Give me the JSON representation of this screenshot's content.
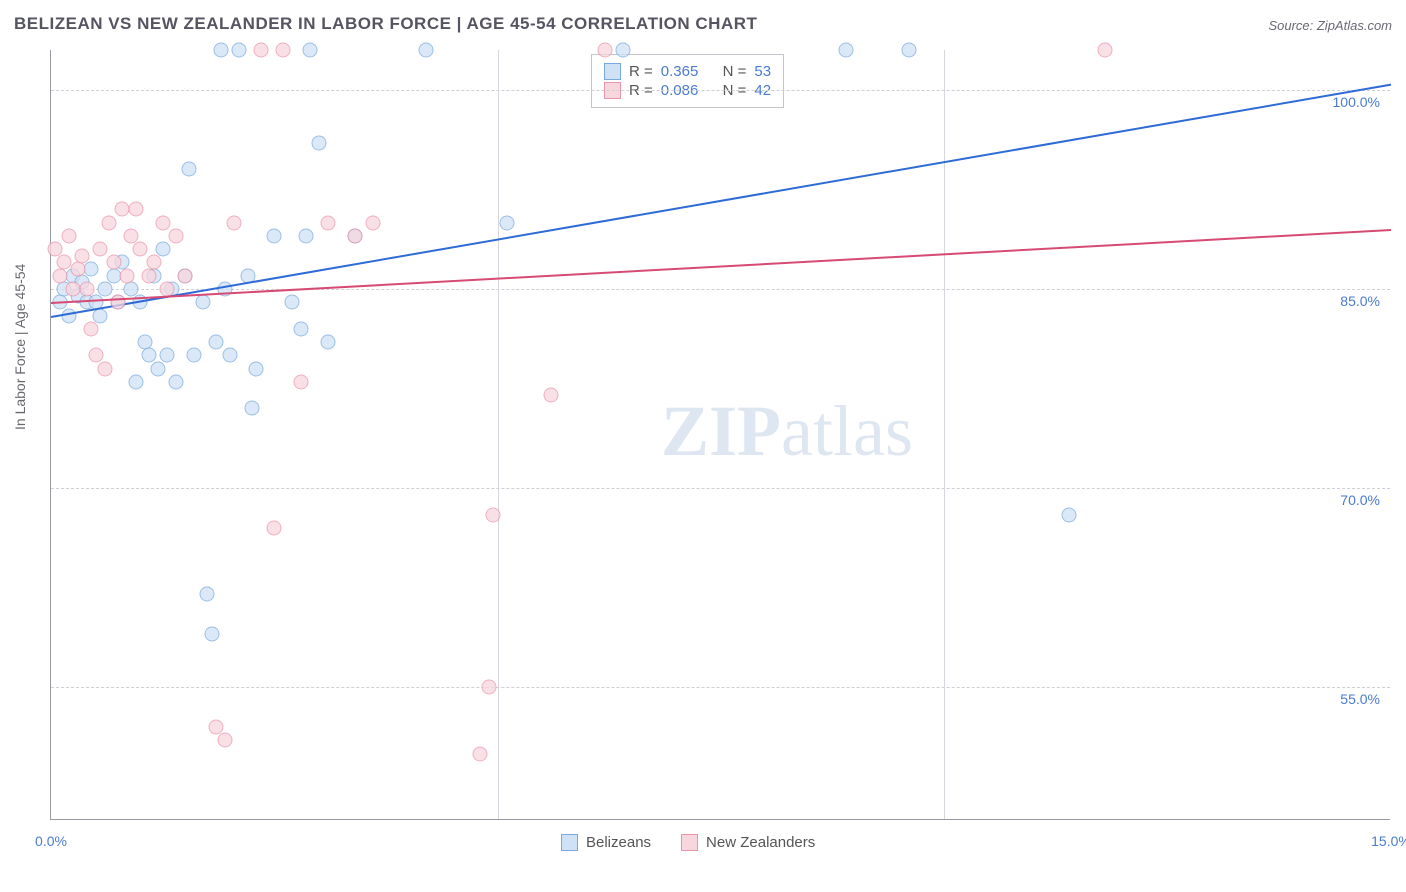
{
  "title": "BELIZEAN VS NEW ZEALANDER IN LABOR FORCE | AGE 45-54 CORRELATION CHART",
  "source": "Source: ZipAtlas.com",
  "ylabel": "In Labor Force | Age 45-54",
  "watermark_bold": "ZIP",
  "watermark_light": "atlas",
  "chart": {
    "type": "scatter",
    "xlim": [
      0.0,
      15.0
    ],
    "ylim": [
      45.0,
      103.0
    ],
    "xticks": [
      {
        "pos": 0.0,
        "label": "0.0%"
      },
      {
        "pos": 15.0,
        "label": "15.0%"
      }
    ],
    "xgridlines": [
      5.0,
      10.0
    ],
    "yticks": [
      {
        "pos": 55.0,
        "label": "55.0%"
      },
      {
        "pos": 70.0,
        "label": "70.0%"
      },
      {
        "pos": 85.0,
        "label": "85.0%"
      },
      {
        "pos": 100.0,
        "label": "100.0%"
      }
    ],
    "background_color": "#ffffff",
    "grid_color": "#cfcfd6",
    "axis_color": "#9a9aa5",
    "marker_size": 15,
    "series": [
      {
        "name": "Belizeans",
        "color_fill": "#cfe1f5",
        "color_stroke": "#7aa9dd",
        "r": 0.365,
        "n": 53,
        "trend": {
          "y_at_x0": 83.0,
          "y_at_x15": 100.5,
          "color": "#2e6bd6",
          "width": 2
        },
        "points": [
          [
            0.1,
            84
          ],
          [
            0.15,
            85
          ],
          [
            0.2,
            83
          ],
          [
            0.25,
            86
          ],
          [
            0.3,
            84.5
          ],
          [
            0.35,
            85.5
          ],
          [
            0.4,
            84
          ],
          [
            0.45,
            86.5
          ],
          [
            0.5,
            84
          ],
          [
            0.55,
            83
          ],
          [
            0.6,
            85
          ],
          [
            0.7,
            86
          ],
          [
            0.75,
            84
          ],
          [
            0.8,
            87
          ],
          [
            0.9,
            85
          ],
          [
            0.95,
            78
          ],
          [
            1.0,
            84
          ],
          [
            1.05,
            81
          ],
          [
            1.1,
            80
          ],
          [
            1.15,
            86
          ],
          [
            1.2,
            79
          ],
          [
            1.25,
            88
          ],
          [
            1.3,
            80
          ],
          [
            1.35,
            85
          ],
          [
            1.4,
            78
          ],
          [
            1.5,
            86
          ],
          [
            1.55,
            94
          ],
          [
            1.6,
            80
          ],
          [
            1.7,
            84
          ],
          [
            1.75,
            62
          ],
          [
            1.8,
            59
          ],
          [
            1.85,
            81
          ],
          [
            1.9,
            103
          ],
          [
            1.95,
            85
          ],
          [
            2.0,
            80
          ],
          [
            2.1,
            103
          ],
          [
            2.2,
            86
          ],
          [
            2.25,
            76
          ],
          [
            2.3,
            79
          ],
          [
            2.5,
            89
          ],
          [
            2.7,
            84
          ],
          [
            2.8,
            82
          ],
          [
            2.85,
            89
          ],
          [
            2.9,
            103
          ],
          [
            3.0,
            96
          ],
          [
            3.1,
            81
          ],
          [
            3.4,
            89
          ],
          [
            4.2,
            103
          ],
          [
            5.1,
            90
          ],
          [
            6.4,
            103
          ],
          [
            8.9,
            103
          ],
          [
            9.6,
            103
          ],
          [
            11.4,
            68
          ]
        ]
      },
      {
        "name": "New Zealanders",
        "color_fill": "#f7d6de",
        "color_stroke": "#e895ab",
        "r": 0.086,
        "n": 42,
        "trend": {
          "y_at_x0": 84.0,
          "y_at_x15": 89.5,
          "color": "#d64a73",
          "width": 2
        },
        "points": [
          [
            0.05,
            88
          ],
          [
            0.1,
            86
          ],
          [
            0.15,
            87
          ],
          [
            0.2,
            89
          ],
          [
            0.25,
            85
          ],
          [
            0.3,
            86.5
          ],
          [
            0.35,
            87.5
          ],
          [
            0.4,
            85
          ],
          [
            0.45,
            82
          ],
          [
            0.5,
            80
          ],
          [
            0.55,
            88
          ],
          [
            0.6,
            79
          ],
          [
            0.65,
            90
          ],
          [
            0.7,
            87
          ],
          [
            0.75,
            84
          ],
          [
            0.8,
            91
          ],
          [
            0.85,
            86
          ],
          [
            0.9,
            89
          ],
          [
            0.95,
            91
          ],
          [
            1.0,
            88
          ],
          [
            1.1,
            86
          ],
          [
            1.15,
            87
          ],
          [
            1.25,
            90
          ],
          [
            1.3,
            85
          ],
          [
            1.4,
            89
          ],
          [
            1.5,
            86
          ],
          [
            1.85,
            52
          ],
          [
            1.95,
            51
          ],
          [
            2.05,
            90
          ],
          [
            2.35,
            103
          ],
          [
            2.5,
            67
          ],
          [
            2.6,
            103
          ],
          [
            2.8,
            78
          ],
          [
            3.1,
            90
          ],
          [
            3.4,
            89
          ],
          [
            3.6,
            90
          ],
          [
            4.8,
            50
          ],
          [
            4.9,
            55
          ],
          [
            4.95,
            68
          ],
          [
            5.6,
            77
          ],
          [
            6.2,
            103
          ],
          [
            11.8,
            103
          ]
        ]
      }
    ]
  },
  "legend": {
    "series1_label": "Belizeans",
    "series2_label": "New Zealanders"
  },
  "stats_labels": {
    "r_prefix": "R =",
    "n_prefix": "N ="
  }
}
